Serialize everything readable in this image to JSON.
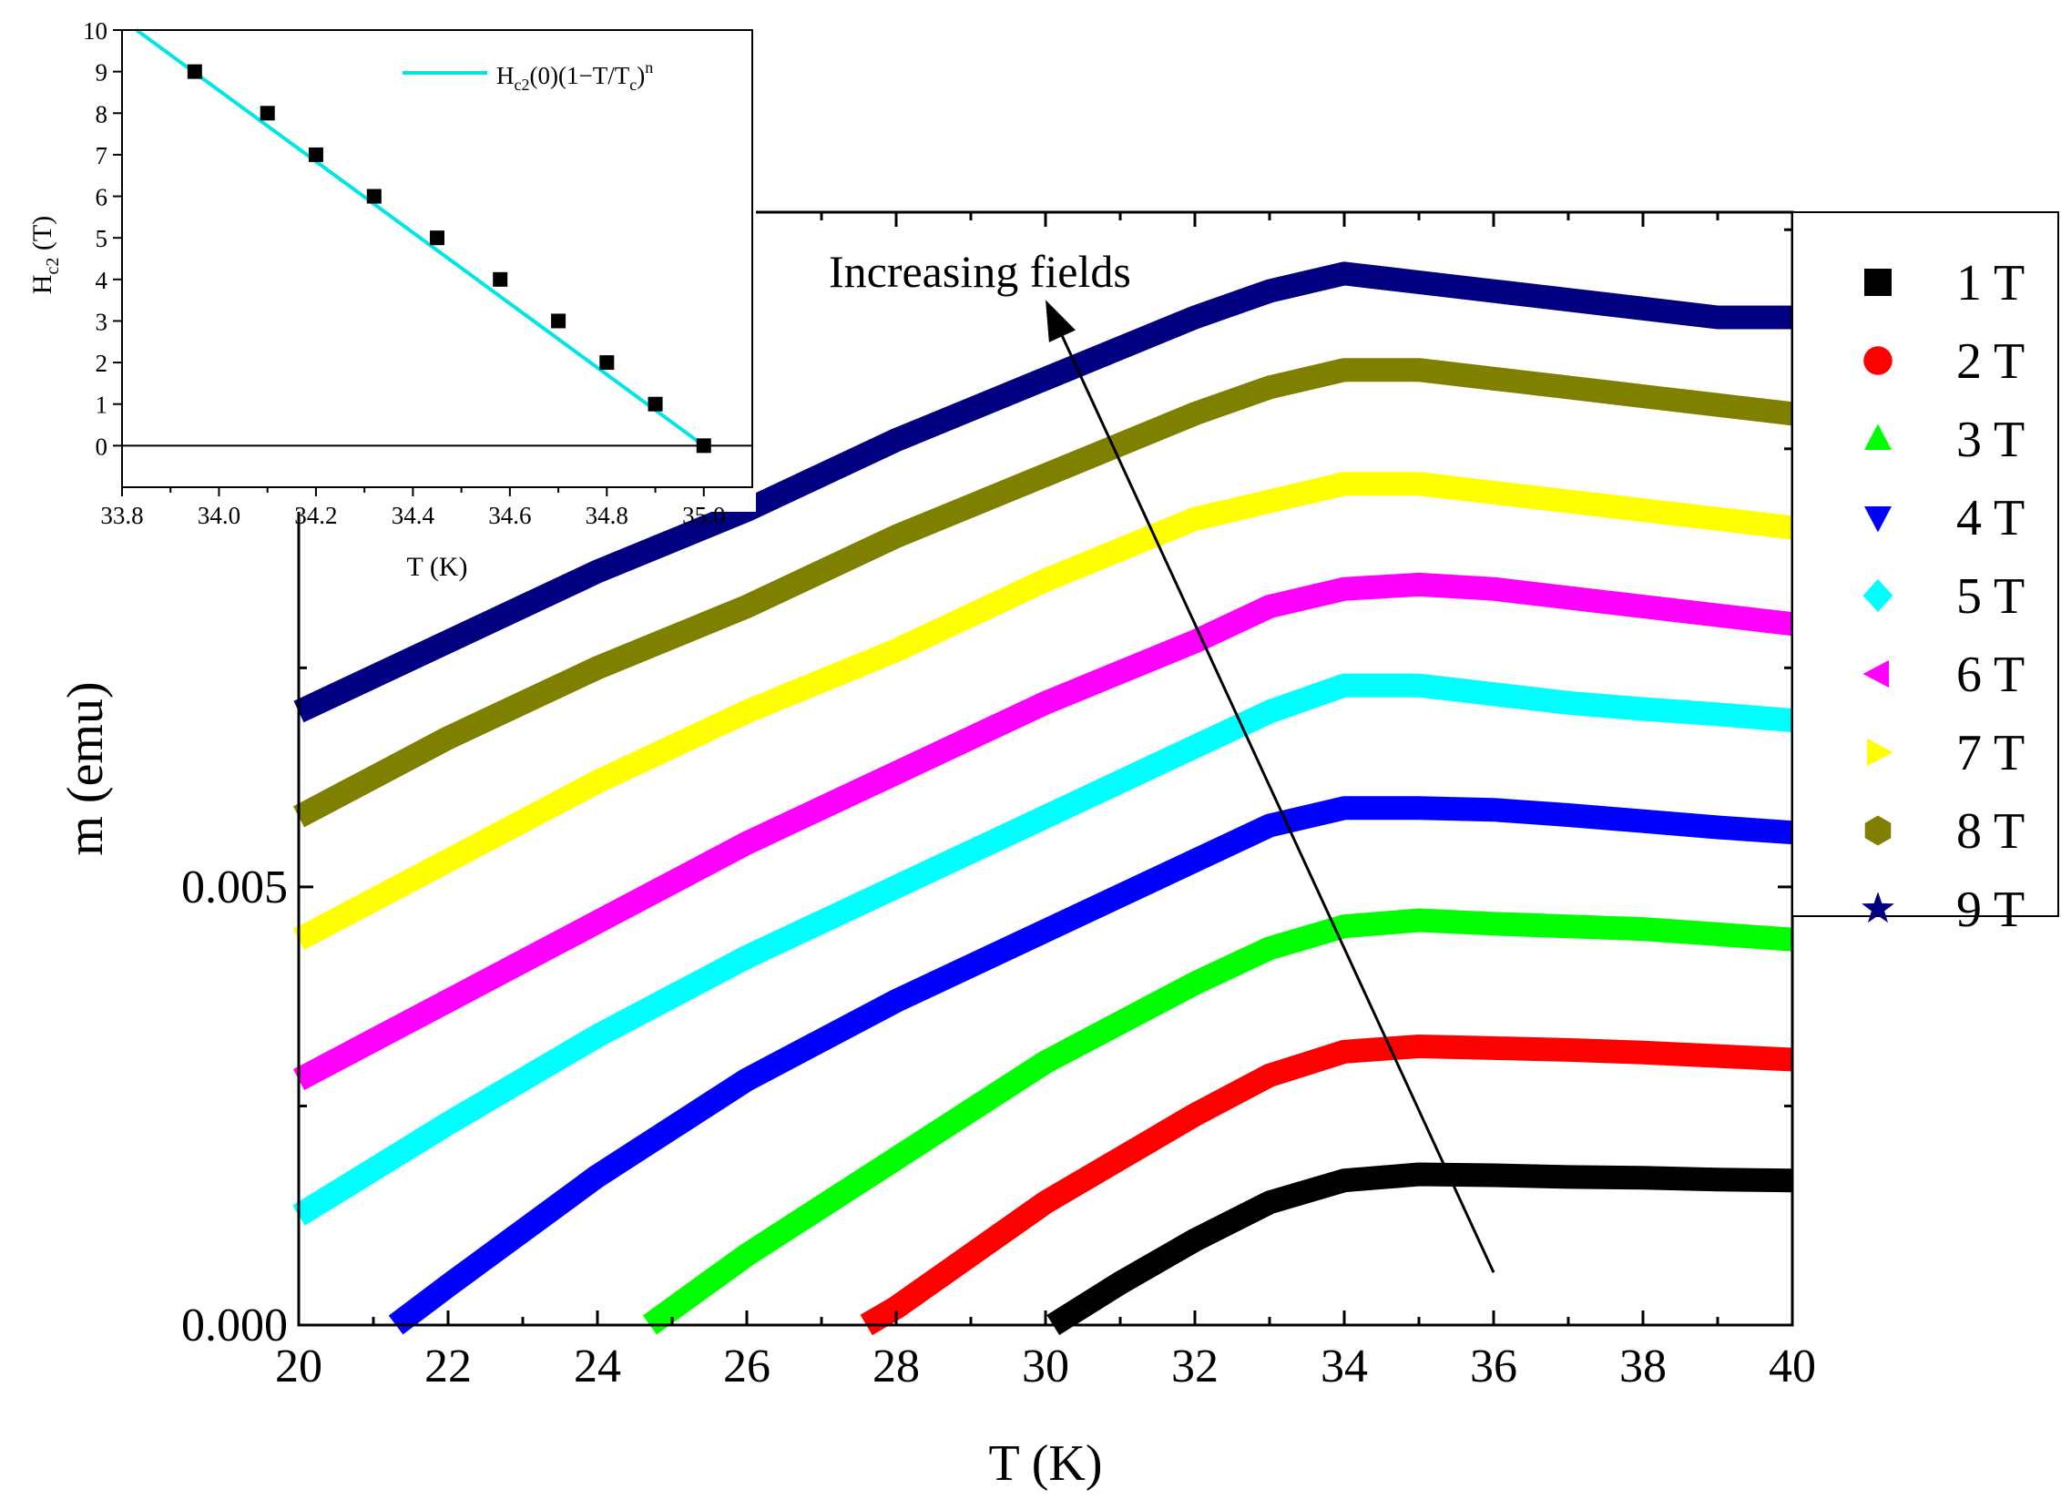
{
  "chart_data": [
    {
      "type": "line",
      "xlabel": "T (K)",
      "ylabel": "m (emu)",
      "xlim": [
        20,
        40
      ],
      "ylim": [
        0,
        0.0127
      ],
      "xticks": [
        "20",
        "22",
        "24",
        "26",
        "28",
        "30",
        "32",
        "34",
        "36",
        "38",
        "40"
      ],
      "yticks": [
        "0.000",
        "0.005"
      ],
      "yticks_values": [
        0,
        0.005
      ],
      "grid": false,
      "legend_position": "right",
      "annotation": {
        "text": "Increasing fields",
        "arrow_from": [
          36,
          0.0006
        ],
        "arrow_to": [
          30,
          0.0117
        ]
      },
      "series": [
        {
          "name": "1 T",
          "color": "#000000",
          "marker": "square",
          "x": [
            30.1,
            31,
            32,
            33,
            34,
            35,
            36,
            37,
            38,
            39,
            40
          ],
          "y": [
            0,
            0.00048,
            0.00097,
            0.0014,
            0.00165,
            0.00172,
            0.00171,
            0.00169,
            0.00168,
            0.00166,
            0.00165
          ]
        },
        {
          "name": "2 T",
          "color": "#ff0000",
          "marker": "circle",
          "x": [
            27.6,
            28,
            29,
            30,
            31,
            32,
            33,
            34,
            35,
            36,
            37,
            38,
            39,
            40
          ],
          "y": [
            0,
            0.0002,
            0.0008,
            0.0014,
            0.0019,
            0.0024,
            0.00285,
            0.00312,
            0.00318,
            0.00316,
            0.00314,
            0.00311,
            0.00307,
            0.00303
          ]
        },
        {
          "name": "3 T",
          "color": "#00ff00",
          "marker": "triangle-up",
          "x": [
            24.7,
            26,
            28,
            30,
            32,
            33,
            34,
            35,
            36,
            37,
            38,
            39,
            40
          ],
          "y": [
            0,
            0.0008,
            0.0019,
            0.003,
            0.0039,
            0.0043,
            0.00455,
            0.00462,
            0.00458,
            0.00455,
            0.00452,
            0.00446,
            0.0044
          ]
        },
        {
          "name": "4 T",
          "color": "#0000ff",
          "marker": "triangle-down",
          "x": [
            21.3,
            22,
            24,
            26,
            28,
            30,
            32,
            33,
            34,
            35,
            36,
            37,
            38,
            39,
            40
          ],
          "y": [
            0,
            0.00045,
            0.0017,
            0.0028,
            0.0037,
            0.0045,
            0.0053,
            0.0057,
            0.0059,
            0.0059,
            0.00588,
            0.00582,
            0.00575,
            0.00568,
            0.00562
          ]
        },
        {
          "name": "5 T",
          "color": "#00ffff",
          "marker": "diamond",
          "x": [
            20,
            22,
            24,
            26,
            28,
            30,
            32,
            33,
            34,
            35,
            36,
            37,
            38,
            39,
            40
          ],
          "y": [
            0.00125,
            0.0023,
            0.0033,
            0.0042,
            0.005,
            0.0058,
            0.0066,
            0.007,
            0.0073,
            0.0073,
            0.0072,
            0.0071,
            0.00703,
            0.00697,
            0.0069
          ]
        },
        {
          "name": "6 T",
          "color": "#ff00ff",
          "marker": "triangle-left",
          "x": [
            20,
            22,
            24,
            26,
            28,
            30,
            32,
            33,
            34,
            35,
            36,
            37,
            38,
            39,
            40
          ],
          "y": [
            0.0028,
            0.0037,
            0.0046,
            0.0055,
            0.0063,
            0.0071,
            0.0078,
            0.0082,
            0.0084,
            0.00845,
            0.0084,
            0.0083,
            0.0082,
            0.0081,
            0.008
          ]
        },
        {
          "name": "7 T",
          "color": "#ffff00",
          "marker": "triangle-right",
          "x": [
            20,
            22,
            24,
            26,
            28,
            30,
            32,
            33,
            34,
            35,
            36,
            37,
            38,
            39,
            40
          ],
          "y": [
            0.0044,
            0.0053,
            0.0062,
            0.007,
            0.0077,
            0.0085,
            0.0092,
            0.0094,
            0.0096,
            0.0096,
            0.0095,
            0.0094,
            0.0093,
            0.0092,
            0.0091
          ]
        },
        {
          "name": "8 T",
          "color": "#808000",
          "marker": "hexagon",
          "x": [
            20,
            22,
            24,
            26,
            28,
            30,
            32,
            33,
            34,
            35,
            36,
            37,
            38,
            39,
            40
          ],
          "y": [
            0.0058,
            0.0067,
            0.0075,
            0.0082,
            0.009,
            0.0097,
            0.0104,
            0.0107,
            0.0109,
            0.0109,
            0.0108,
            0.0107,
            0.0106,
            0.0105,
            0.0104
          ]
        },
        {
          "name": "9 T",
          "color": "#000080",
          "marker": "star",
          "x": [
            20,
            22,
            24,
            26,
            28,
            30,
            32,
            33,
            34,
            35,
            36,
            37,
            38,
            39,
            40
          ],
          "y": [
            0.007,
            0.0078,
            0.0086,
            0.0093,
            0.0101,
            0.0108,
            0.0115,
            0.0118,
            0.012,
            0.0119,
            0.0118,
            0.0117,
            0.0116,
            0.0115,
            0.0115
          ]
        }
      ]
    },
    {
      "type": "scatter",
      "xlabel": "T (K)",
      "ylabel": "H",
      "ylabel_sub": "c2",
      "ylabel_suffix": " (T)",
      "xlim": [
        33.8,
        35.1
      ],
      "ylim": [
        -1,
        10
      ],
      "xticks": [
        "33.8",
        "34.0",
        "34.2",
        "34.4",
        "34.6",
        "34.8",
        "35.0"
      ],
      "xticks_values": [
        33.8,
        34.0,
        34.2,
        34.4,
        34.6,
        34.8,
        35.0
      ],
      "yticks": [
        "0",
        "1",
        "2",
        "3",
        "4",
        "5",
        "6",
        "7",
        "8",
        "9",
        "10"
      ],
      "yticks_values": [
        0,
        1,
        2,
        3,
        4,
        5,
        6,
        7,
        8,
        9,
        10
      ],
      "grid": false,
      "legend_position": "top-right",
      "points": {
        "x": [
          33.95,
          34.1,
          34.2,
          34.32,
          34.45,
          34.58,
          34.7,
          34.8,
          34.9,
          35.0
        ],
        "y": [
          9,
          8,
          7,
          6,
          5,
          4,
          3,
          2,
          1,
          0
        ],
        "marker": "square",
        "color": "#000000"
      },
      "fit": {
        "label_parts": [
          "H",
          "c2",
          "(0)(1−T/T",
          "c",
          ")",
          "n"
        ],
        "color": "#00e5e5",
        "x": [
          33.83,
          35.0
        ],
        "y": [
          10,
          0
        ]
      }
    }
  ]
}
